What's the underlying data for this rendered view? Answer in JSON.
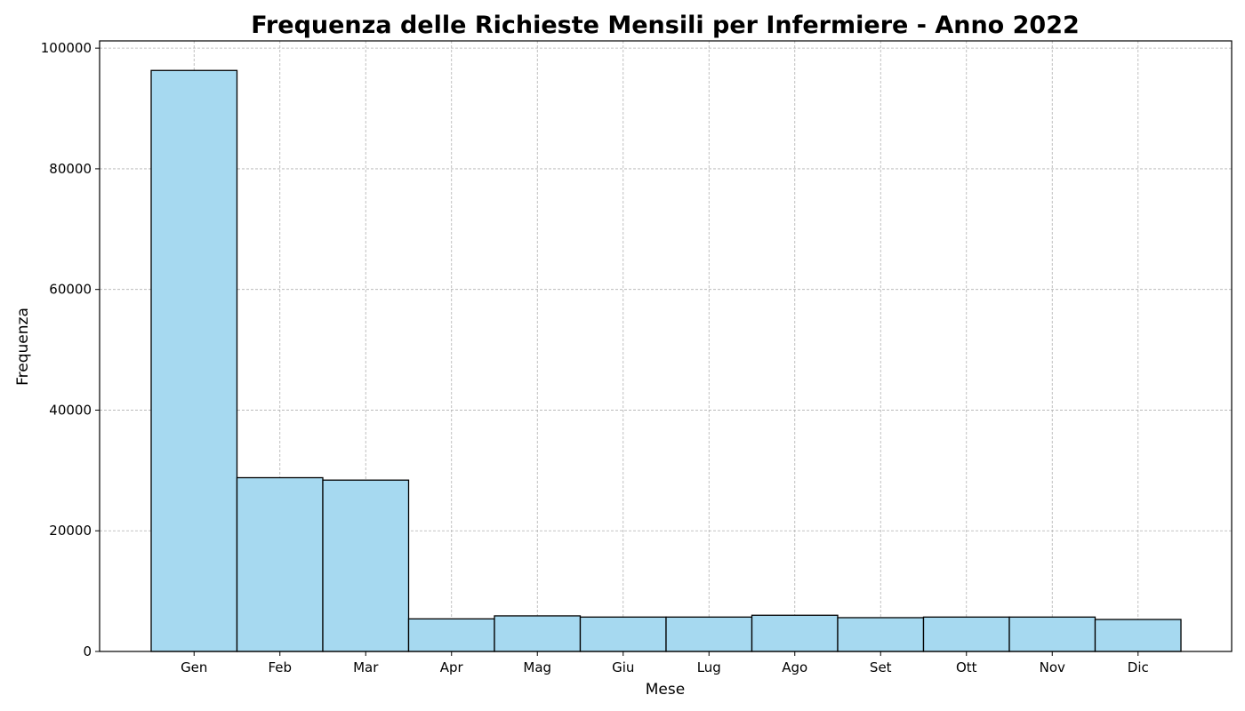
{
  "chart_data": {
    "type": "bar",
    "title": "Frequenza delle Richieste Mensili per Infermiere - Anno 2022",
    "xlabel": "Mese",
    "ylabel": "Frequenza",
    "categories": [
      "Gen",
      "Feb",
      "Mar",
      "Apr",
      "Mag",
      "Giu",
      "Lug",
      "Ago",
      "Set",
      "Ott",
      "Nov",
      "Dic"
    ],
    "values": [
      96300,
      28800,
      28400,
      5400,
      5900,
      5700,
      5700,
      6000,
      5600,
      5700,
      5700,
      5300
    ],
    "ylim": [
      0,
      101200
    ],
    "yticks": [
      0,
      20000,
      40000,
      60000,
      80000,
      100000
    ],
    "grid": true,
    "bar_color": "#a6d9f0",
    "edge_color": "#000000"
  }
}
